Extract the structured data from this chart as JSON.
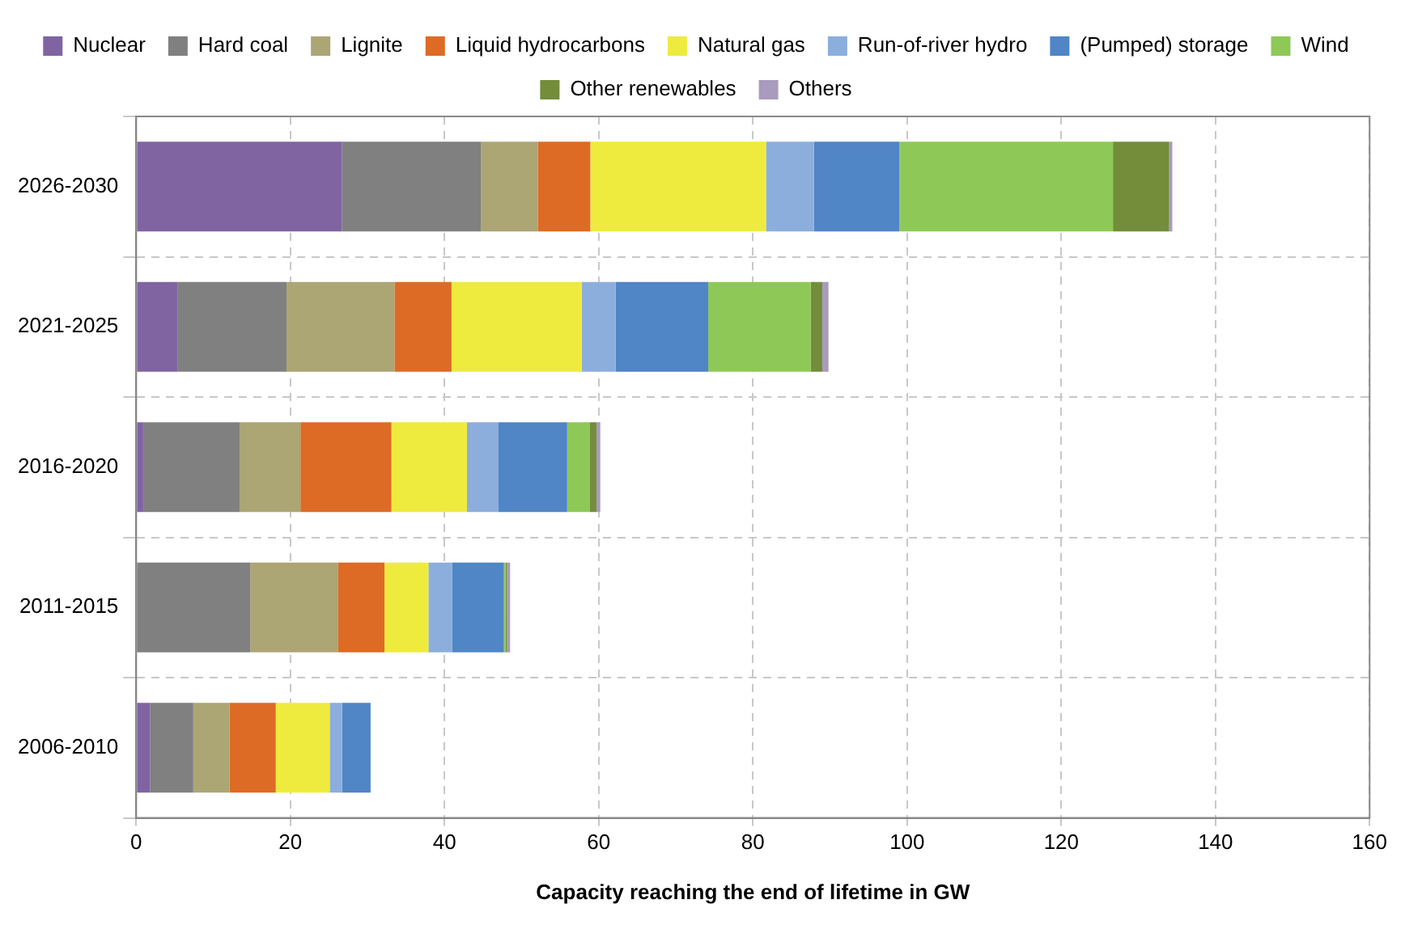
{
  "chart_data": {
    "type": "bar",
    "orientation": "horizontal",
    "stacked": true,
    "xlabel": "Capacity reaching the end of lifetime in GW",
    "categories": [
      "2026-2030",
      "2021-2025",
      "2016-2020",
      "2011-2015",
      "2006-2010"
    ],
    "series": [
      {
        "name": "Nuclear",
        "color": "#8064a2",
        "values": [
          26.7,
          5.4,
          0.9,
          0,
          1.8
        ]
      },
      {
        "name": "Hard coal",
        "color": "#808080",
        "values": [
          18.0,
          14.1,
          12.5,
          14.8,
          5.6
        ]
      },
      {
        "name": "Lignite",
        "color": "#aca574",
        "values": [
          7.4,
          14.0,
          7.9,
          11.4,
          4.7
        ]
      },
      {
        "name": "Liquid hydrocarbons",
        "color": "#dd6b25",
        "values": [
          6.8,
          7.4,
          11.8,
          6.0,
          6.0
        ]
      },
      {
        "name": "Natural gas",
        "color": "#eeeb3e",
        "values": [
          22.8,
          16.9,
          9.8,
          5.7,
          7.0
        ]
      },
      {
        "name": "Run-of-river hydro",
        "color": "#8caedc",
        "values": [
          6.2,
          4.4,
          4.1,
          3.1,
          1.6
        ]
      },
      {
        "name": "(Pumped) storage",
        "color": "#5085c6",
        "values": [
          11.1,
          12.0,
          8.9,
          6.7,
          3.7
        ]
      },
      {
        "name": "Wind",
        "color": "#8ec957",
        "values": [
          27.7,
          13.3,
          2.9,
          0.2,
          0
        ]
      },
      {
        "name": "Other renewables",
        "color": "#738d3b",
        "values": [
          7.3,
          1.5,
          0.9,
          0.2,
          0
        ]
      },
      {
        "name": "Others",
        "color": "#a99bbd",
        "values": [
          0.4,
          0.8,
          0.5,
          0.4,
          0
        ]
      }
    ],
    "xlim": [
      0,
      160
    ],
    "xticks": [
      0,
      20,
      40,
      60,
      80,
      100,
      120,
      140,
      160
    ],
    "grid": true,
    "legend": "top"
  }
}
